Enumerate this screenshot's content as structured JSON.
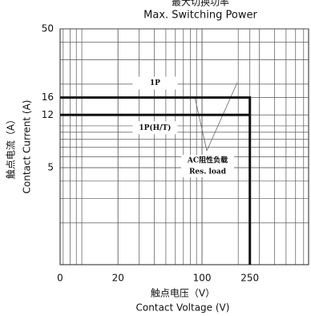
{
  "chart_data": {
    "type": "line",
    "title": "最大切换功率",
    "subtitle": "Max. Switching Power",
    "x_label": "触点电压（V）",
    "x_label_en": "Contact Voltage (V)",
    "y_label": "触点电流（A）",
    "y_label_en": "Contact Current (A)",
    "x_origin_label": "0",
    "annotation": "AC阻性负载",
    "annotation_en": "Res. load",
    "log_x": true,
    "log_y": true,
    "grid": true,
    "xlim": [
      6.6,
      770
    ],
    "xticks": [
      20,
      100,
      250
    ],
    "ylim": [
      1,
      50
    ],
    "yticks": [
      5,
      12,
      16,
      50
    ],
    "series": [
      {
        "name": "1P",
        "color": "#111111",
        "x": [
          6.6,
          250,
          250
        ],
        "values": [
          16,
          16,
          1
        ]
      },
      {
        "name": "1P(H/T)",
        "color": "#111111",
        "x": [
          6.6,
          250
        ],
        "values": [
          12,
          12
        ]
      }
    ]
  }
}
